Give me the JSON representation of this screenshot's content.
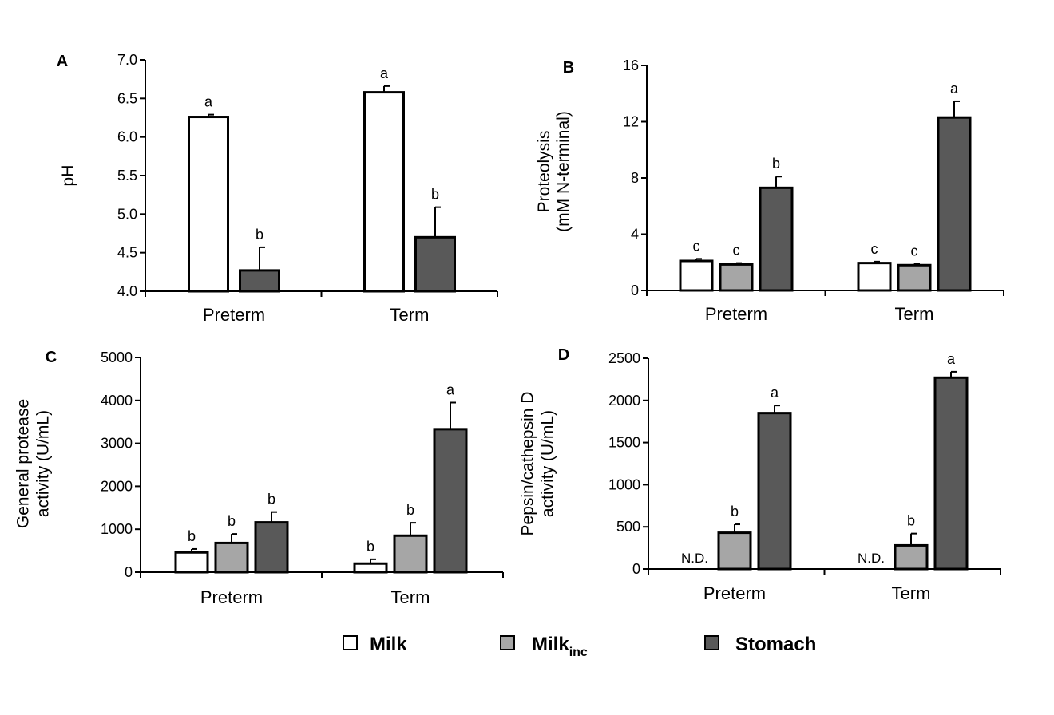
{
  "colors": {
    "milk": "#ffffff",
    "milk_inc": "#a6a6a6",
    "stomach": "#595959",
    "stroke": "#000000"
  },
  "legend": {
    "items": [
      {
        "key": "milk",
        "label": "Milk",
        "sub": ""
      },
      {
        "key": "milk_inc",
        "label": "Milk",
        "sub": "inc"
      },
      {
        "key": "stomach",
        "label": "Stomach",
        "sub": ""
      }
    ]
  },
  "chart_data": [
    {
      "panel": "A",
      "type": "bar",
      "ylabel": [
        "pH"
      ],
      "ylim": [
        4.0,
        7.0
      ],
      "yticks": [
        "4.0",
        "4.5",
        "5.0",
        "5.5",
        "6.0",
        "6.5",
        "7.0"
      ],
      "categories": [
        "Preterm",
        "Term"
      ],
      "series": [
        {
          "key": "milk",
          "name": "Milk",
          "values": [
            6.26,
            6.58
          ],
          "errors": [
            0.03,
            0.08
          ],
          "letters": [
            "a",
            "a"
          ],
          "nd": [
            false,
            false
          ]
        },
        {
          "key": "stomach",
          "name": "Stomach",
          "values": [
            4.27,
            4.7
          ],
          "errors": [
            0.3,
            0.39
          ],
          "letters": [
            "b",
            "b"
          ],
          "nd": [
            false,
            false
          ]
        }
      ]
    },
    {
      "panel": "B",
      "type": "bar",
      "ylabel": [
        "Proteolysis",
        "(mM N-terminal)"
      ],
      "ylim": [
        0,
        16
      ],
      "yticks": [
        "0",
        "4",
        "8",
        "12",
        "16"
      ],
      "categories": [
        "Preterm",
        "Term"
      ],
      "series": [
        {
          "key": "milk",
          "name": "Milk",
          "values": [
            2.1,
            1.95
          ],
          "errors": [
            0.15,
            0.1
          ],
          "letters": [
            "c",
            "c"
          ],
          "nd": [
            false,
            false
          ]
        },
        {
          "key": "milk_inc",
          "name": "Milk inc",
          "values": [
            1.85,
            1.8
          ],
          "errors": [
            0.1,
            0.1
          ],
          "letters": [
            "c",
            "c"
          ],
          "nd": [
            false,
            false
          ]
        },
        {
          "key": "stomach",
          "name": "Stomach",
          "values": [
            7.3,
            12.3
          ],
          "errors": [
            0.8,
            1.15
          ],
          "letters": [
            "b",
            "a"
          ],
          "nd": [
            false,
            false
          ]
        }
      ]
    },
    {
      "panel": "C",
      "type": "bar",
      "ylabel": [
        "General protease",
        "activity (U/mL)"
      ],
      "ylim": [
        0,
        5000
      ],
      "yticks": [
        "0",
        "1000",
        "2000",
        "3000",
        "4000",
        "5000"
      ],
      "categories": [
        "Preterm",
        "Term"
      ],
      "series": [
        {
          "key": "milk",
          "name": "Milk",
          "values": [
            460,
            200
          ],
          "errors": [
            80,
            100
          ],
          "letters": [
            "b",
            "b"
          ],
          "nd": [
            false,
            false
          ]
        },
        {
          "key": "milk_inc",
          "name": "Milk inc",
          "values": [
            680,
            850
          ],
          "errors": [
            210,
            300
          ],
          "letters": [
            "b",
            "b"
          ],
          "nd": [
            false,
            false
          ]
        },
        {
          "key": "stomach",
          "name": "Stomach",
          "values": [
            1160,
            3330
          ],
          "errors": [
            240,
            620
          ],
          "letters": [
            "b",
            "a"
          ],
          "nd": [
            false,
            false
          ]
        }
      ]
    },
    {
      "panel": "D",
      "type": "bar",
      "ylabel": [
        "Pepsin/cathepsin D",
        "activity (U/mL)"
      ],
      "ylim": [
        0,
        2500
      ],
      "yticks": [
        "0",
        "500",
        "1000",
        "1500",
        "2000",
        "2500"
      ],
      "categories": [
        "Preterm",
        "Term"
      ],
      "nd_label": "N.D.",
      "series": [
        {
          "key": "milk",
          "name": "Milk",
          "values": [
            0,
            0
          ],
          "errors": [
            0,
            0
          ],
          "letters": [
            "",
            ""
          ],
          "nd": [
            true,
            true
          ]
        },
        {
          "key": "milk_inc",
          "name": "Milk inc",
          "values": [
            430,
            280
          ],
          "errors": [
            100,
            140
          ],
          "letters": [
            "b",
            "b"
          ],
          "nd": [
            false,
            false
          ]
        },
        {
          "key": "stomach",
          "name": "Stomach",
          "values": [
            1850,
            2270
          ],
          "errors": [
            90,
            70
          ],
          "letters": [
            "a",
            "a"
          ],
          "nd": [
            false,
            false
          ]
        }
      ]
    }
  ]
}
